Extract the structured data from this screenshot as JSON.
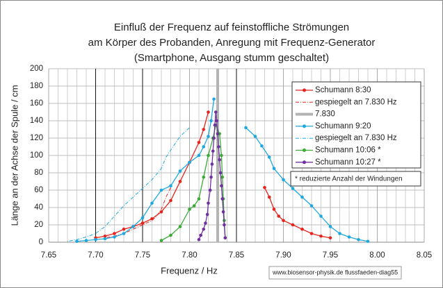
{
  "chart_data": {
    "type": "line",
    "title": [
      "Einfluß der Frequenz auf feinstoffliche Strömungen",
      "am Körper des Probanden, Anregung mit Frequenz-Generator",
      "(Smartphone, Ausgang stumm geschaltet)"
    ],
    "x_label": "Frequenz / Hz",
    "y_label": "Länge an der Achse der Spule / cm",
    "annotation": "* reduzierte Anzahl der Windungen",
    "source": "www.biosensor-physik.de  flussfaeden-diag55",
    "xlim": [
      7.65,
      8.05
    ],
    "ylim": [
      0,
      200
    ],
    "xticks": [
      7.65,
      {
        "value": 7.7,
        "label": "7.70"
      },
      7.75,
      {
        "value": 7.8,
        "label": "7.80"
      },
      7.85,
      {
        "value": 7.9,
        "label": "7.90"
      },
      7.95,
      {
        "value": 8,
        "label": "8.00"
      },
      8.05
    ],
    "yticks": [
      0,
      20,
      40,
      60,
      80,
      100,
      120,
      140,
      160,
      180,
      200
    ],
    "x_minor_gridlines": [
      7.66,
      7.67,
      7.68,
      7.69,
      7.71,
      7.72,
      7.73,
      7.74,
      7.76,
      7.77,
      7.78,
      7.79,
      7.81,
      7.82,
      7.83,
      7.84,
      7.86,
      7.87,
      7.88,
      7.89,
      7.91,
      7.92,
      7.93,
      7.94,
      7.96,
      7.97,
      7.98,
      7.99,
      8.01,
      8.02,
      8.03,
      8.04
    ],
    "reference_lines": [
      7.7,
      7.75,
      7.85
    ],
    "grid": true,
    "legend": "upper right",
    "series": [
      {
        "name": "Schumann 8:30",
        "color": "#e8221c",
        "marker": true,
        "dash": "solid",
        "width": 1.3,
        "x": [
          7.7,
          7.71,
          7.72,
          7.73,
          7.74,
          7.75,
          7.76,
          7.77,
          7.78,
          7.79,
          7.8,
          7.81,
          7.815,
          7.82,
          null,
          7.88,
          7.885,
          7.89,
          7.895,
          7.9,
          7.91,
          7.92,
          7.93,
          7.94,
          7.95
        ],
        "values": [
          5,
          7,
          10,
          15,
          18,
          22,
          27,
          35,
          48,
          70,
          92,
          115,
          130,
          150,
          null,
          63,
          52,
          38,
          30,
          25,
          20,
          15,
          10,
          7,
          5
        ]
      },
      {
        "name": "gespiegelt an 7.830 Hz",
        "color": "#e8221c",
        "marker": false,
        "dash": "dashdot",
        "width": 1,
        "x": [
          7.78,
          7.775,
          7.77,
          7.765,
          7.76,
          7.75,
          7.74,
          7.73,
          7.72,
          7.71
        ],
        "values": [
          63,
          52,
          38,
          30,
          25,
          20,
          15,
          10,
          7,
          5
        ]
      },
      {
        "name": "7.830",
        "color": "#b4b4b4",
        "marker": false,
        "dash": "solid",
        "width": 4,
        "x": [
          7.83,
          7.83
        ],
        "values": [
          0,
          200
        ]
      },
      {
        "name": "Schumann 9:20",
        "color": "#1ea8e0",
        "marker": true,
        "dash": "solid",
        "width": 1.3,
        "x": [
          7.68,
          7.69,
          7.7,
          7.71,
          7.72,
          7.73,
          7.74,
          7.75,
          7.76,
          7.77,
          7.78,
          7.79,
          7.8,
          7.81,
          7.815,
          7.82,
          7.823,
          7.826,
          null,
          7.86,
          7.87,
          7.877,
          7.885,
          7.89,
          7.9,
          7.91,
          7.92,
          7.93,
          7.94,
          7.95,
          7.96,
          7.97,
          7.98,
          7.99
        ],
        "values": [
          1,
          2,
          3,
          4,
          6,
          10,
          18,
          28,
          45,
          60,
          65,
          82,
          92,
          100,
          110,
          122,
          140,
          165,
          null,
          132,
          122,
          111,
          98,
          85,
          72,
          62,
          52,
          42,
          30,
          18,
          10,
          6,
          3,
          1
        ]
      },
      {
        "name": "gespiegelt an 7.830 Hz",
        "color": "#1ea8e0",
        "marker": false,
        "dash": "dashdot",
        "width": 1,
        "x": [
          7.8,
          7.79,
          7.783,
          7.775,
          7.77,
          7.76,
          7.75,
          7.74,
          7.73,
          7.72,
          7.71,
          7.7,
          7.69,
          7.68,
          7.67
        ],
        "values": [
          132,
          122,
          111,
          98,
          85,
          72,
          62,
          52,
          42,
          30,
          18,
          10,
          6,
          3,
          1
        ]
      },
      {
        "name": "Schumann 10:06 *",
        "color": "#3aaa35",
        "marker": true,
        "dash": "solid",
        "width": 1.3,
        "x": [
          7.77,
          7.78,
          7.79,
          7.8,
          7.805,
          7.81,
          7.815,
          7.82,
          7.825,
          7.828,
          7.832,
          7.834,
          7.835,
          7.836,
          7.837,
          7.838
        ],
        "values": [
          2,
          8,
          18,
          38,
          42,
          50,
          75,
          100,
          120,
          135,
          125,
          100,
          75,
          50,
          25,
          5
        ]
      },
      {
        "name": "Schumann 10:27 *",
        "color": "#7030a0",
        "marker": true,
        "dash": "solid",
        "width": 1.3,
        "x": [
          7.81,
          7.812,
          7.815,
          7.817,
          7.819,
          7.82,
          7.822,
          7.823,
          7.824,
          7.825,
          7.826,
          7.827,
          7.828,
          7.829,
          7.83,
          7.831,
          7.832,
          7.833,
          7.834,
          7.835,
          7.836,
          7.837,
          7.838
        ],
        "values": [
          3,
          8,
          15,
          22,
          32,
          45,
          60,
          75,
          90,
          105,
          120,
          135,
          150,
          140,
          125,
          110,
          95,
          80,
          65,
          50,
          35,
          20,
          5
        ]
      }
    ]
  }
}
